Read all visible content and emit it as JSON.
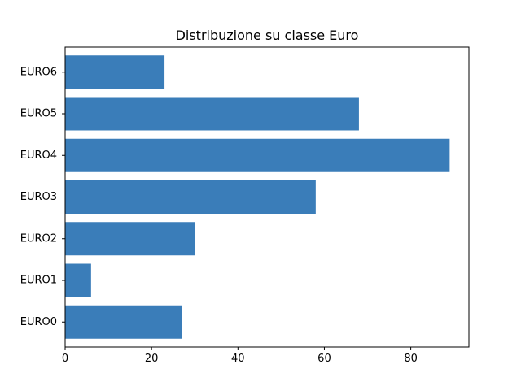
{
  "chart_data": {
    "type": "bar",
    "orientation": "horizontal",
    "title": "Distribuzione su classe Euro",
    "xlabel": "",
    "ylabel": "",
    "categories": [
      "EURO0",
      "EURO1",
      "EURO2",
      "EURO3",
      "EURO4",
      "EURO5",
      "EURO6"
    ],
    "values": [
      27,
      6,
      30,
      58,
      89,
      68,
      23
    ],
    "xlim": [
      0,
      93.45
    ],
    "xticks": [
      0,
      20,
      40,
      60,
      80
    ],
    "grid": false,
    "legend": "none",
    "bar_color": "#3a7db9"
  }
}
